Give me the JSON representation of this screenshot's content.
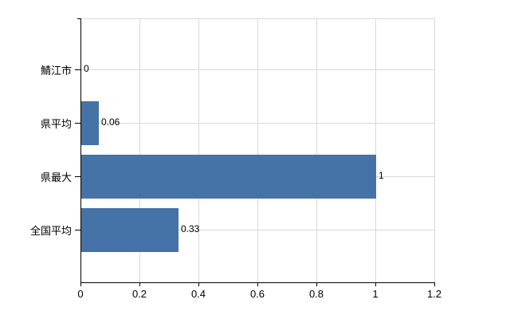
{
  "chart": {
    "bar_color": "#4572a7",
    "grid_color": "#d9d9d9",
    "axis_color": "#000000",
    "text_color": "#000000",
    "background_color": "#ffffff"
  },
  "chart_data": {
    "type": "bar",
    "orientation": "horizontal",
    "title": "",
    "xlabel": "",
    "ylabel": "",
    "categories": [
      "鯖江市",
      "県平均",
      "県最大",
      "全国平均"
    ],
    "values": [
      0,
      0.06,
      1,
      0.33
    ],
    "value_labels": [
      "0",
      "0.06",
      "1",
      "0.33"
    ],
    "x_ticks": [
      0,
      0.2,
      0.4,
      0.6,
      0.8,
      1,
      1.2
    ],
    "x_tick_labels": [
      "0",
      "0.2",
      "0.4",
      "0.6",
      "0.8",
      "1",
      "1.2"
    ],
    "xlim": [
      0,
      1.2
    ],
    "grid": true,
    "legend": false
  }
}
